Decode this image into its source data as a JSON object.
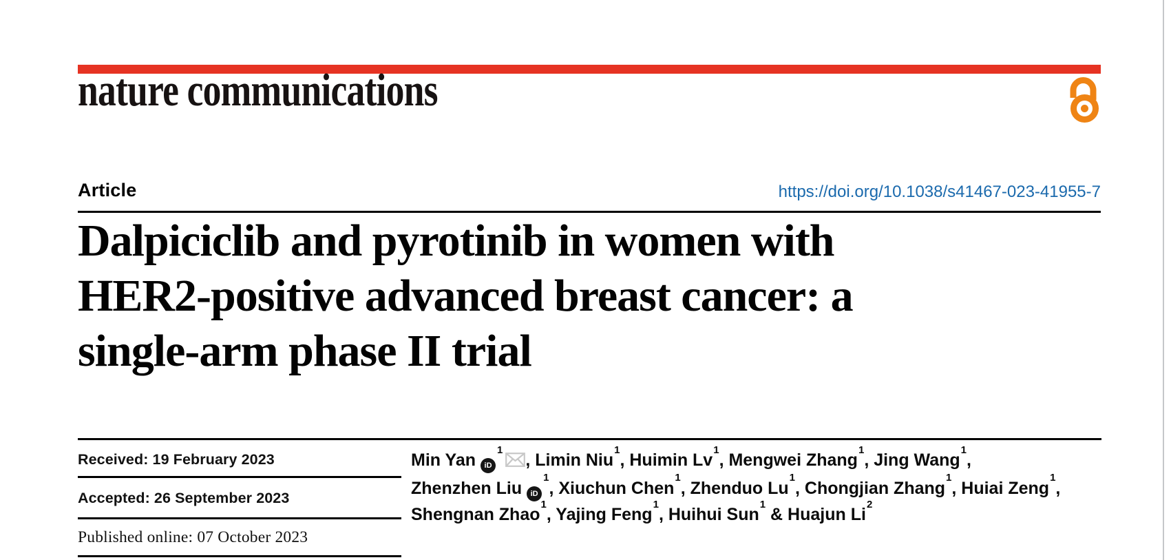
{
  "journal": {
    "name": "nature communications"
  },
  "header": {
    "article_type": "Article",
    "doi": "https://doi.org/10.1038/s41467-023-41955-7"
  },
  "title": {
    "line1": "Dalpiciclib and pyrotinib in women with",
    "line2": "HER2-positive advanced breast cancer: a",
    "line3": "single-arm phase II trial"
  },
  "dates": {
    "received": "Received: 19 February 2023",
    "accepted": "Accepted: 26 September 2023",
    "published": "Published online: 07 October 2023"
  },
  "authors": {
    "orcid_label": "iD",
    "lines": [
      [
        {
          "t": "Min Yan"
        },
        {
          "i": "orcid"
        },
        {
          "s": "1"
        },
        {
          "i": "envelope"
        },
        {
          "t": ", Limin Niu"
        },
        {
          "s": "1"
        },
        {
          "t": ", Huimin Lv"
        },
        {
          "s": "1"
        },
        {
          "t": ", Mengwei Zhang"
        },
        {
          "s": "1"
        },
        {
          "t": ", Jing Wang"
        },
        {
          "s": "1"
        },
        {
          "t": ","
        }
      ],
      [
        {
          "t": "Zhenzhen Liu"
        },
        {
          "i": "orcid"
        },
        {
          "s": "1"
        },
        {
          "t": ", Xiuchun Chen"
        },
        {
          "s": "1"
        },
        {
          "t": ", Zhenduo Lu"
        },
        {
          "s": "1"
        },
        {
          "t": ", Chongjian Zhang"
        },
        {
          "s": "1"
        },
        {
          "t": ", Huiai Zeng"
        },
        {
          "s": "1"
        },
        {
          "t": ","
        }
      ],
      [
        {
          "t": "Shengnan Zhao"
        },
        {
          "s": "1"
        },
        {
          "t": ", Yajing Feng"
        },
        {
          "s": "1"
        },
        {
          "t": ", Huihui Sun"
        },
        {
          "s": "1"
        },
        {
          "t": " & Huajun Li"
        },
        {
          "s": "2"
        }
      ]
    ]
  },
  "icons": {
    "open_access": "open-access-padlock",
    "orcid": "orcid-id",
    "envelope": "email-envelope"
  },
  "colors": {
    "brand_red": "#e63323",
    "open_access_orange": "#ef8414",
    "link_blue": "#1b6aad",
    "text_black": "#0a0a0a",
    "envelope_gray": "#c8c8c8",
    "page_edge_gray": "#c5c7ca"
  }
}
